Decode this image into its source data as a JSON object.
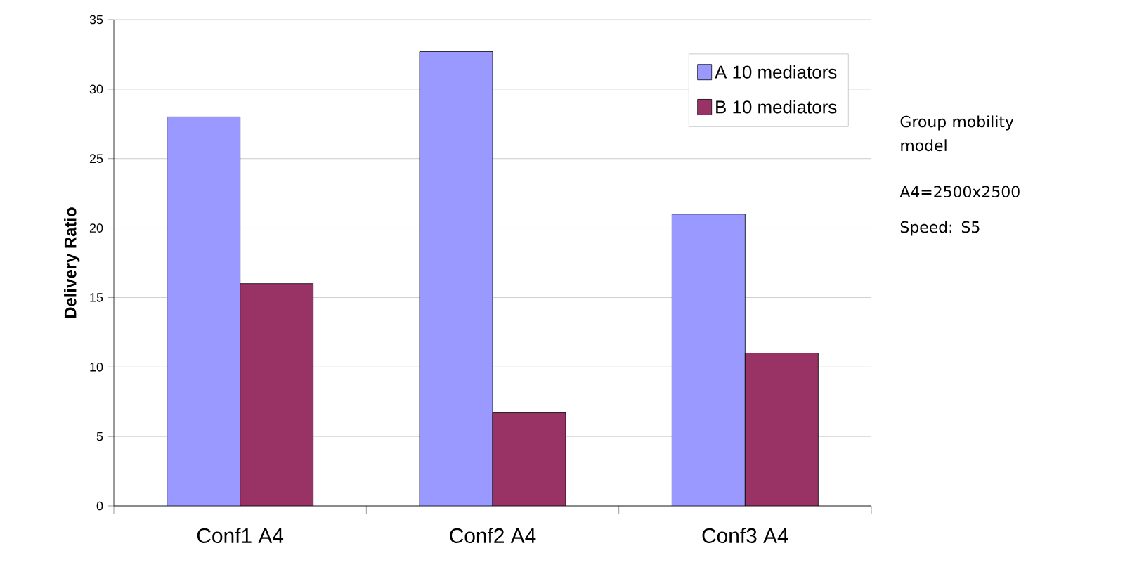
{
  "chart_data": {
    "type": "bar",
    "ylabel": "Delivery Ratio",
    "categories": [
      "Conf1 A4",
      "Conf2 A4",
      "Conf3 A4"
    ],
    "series": [
      {
        "name": "A 10 mediators",
        "color": "#9999ff",
        "values": [
          28.0,
          32.7,
          21.0
        ]
      },
      {
        "name": "B 10 mediators",
        "color": "#993366",
        "values": [
          16.0,
          6.7,
          11.0
        ]
      }
    ],
    "ylim": [
      0,
      35
    ],
    "yticks": [
      0,
      5,
      10,
      15,
      20,
      25,
      30,
      35
    ],
    "grid": "y",
    "legend": "top right",
    "annotations": [
      "Group mobility model",
      "A4=2500x2500",
      "Speed: S5"
    ]
  }
}
